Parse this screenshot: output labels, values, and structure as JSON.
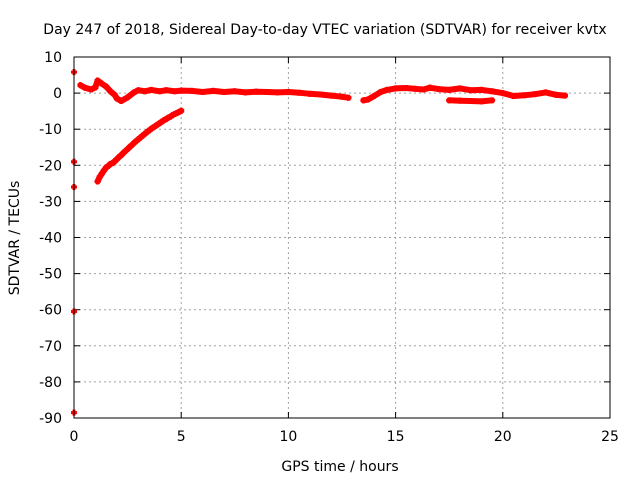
{
  "chart_data": {
    "type": "scatter",
    "title": "Day 247 of 2018, Sidereal Day-to-day VTEC variation (SDTVAR) for receiver kvtx",
    "xlabel": "GPS time / hours",
    "ylabel": "SDTVAR / TECUs",
    "xlim": [
      0,
      25
    ],
    "ylim": [
      -90,
      10
    ],
    "xticks": [
      0,
      5,
      10,
      15,
      20,
      25
    ],
    "yticks": [
      10,
      0,
      -10,
      -20,
      -30,
      -40,
      -50,
      -60,
      -70,
      -80,
      -90
    ],
    "grid": true,
    "series": [
      {
        "name": "SDTVAR",
        "color": "#ff0000",
        "marker": "plus",
        "points": [
          [
            0.0,
            5.8
          ],
          [
            0.0,
            -19.0
          ],
          [
            0.0,
            -26.0
          ],
          [
            0.0,
            -60.5
          ],
          [
            0.0,
            -88.5
          ],
          [
            0.3,
            2.2
          ],
          [
            0.5,
            1.5
          ],
          [
            0.8,
            1.0
          ],
          [
            1.0,
            1.6
          ],
          [
            1.1,
            3.5
          ],
          [
            1.3,
            2.6
          ],
          [
            1.5,
            1.8
          ],
          [
            1.7,
            0.5
          ],
          [
            1.9,
            -0.5
          ],
          [
            2.0,
            -1.5
          ],
          [
            2.2,
            -2.2
          ],
          [
            2.5,
            -1.2
          ],
          [
            2.8,
            0.2
          ],
          [
            3.0,
            0.8
          ],
          [
            3.3,
            0.5
          ],
          [
            3.6,
            0.9
          ],
          [
            4.0,
            0.5
          ],
          [
            4.3,
            0.8
          ],
          [
            4.7,
            0.5
          ],
          [
            5.0,
            0.7
          ],
          [
            5.5,
            0.6
          ],
          [
            6.0,
            0.3
          ],
          [
            6.5,
            0.6
          ],
          [
            7.0,
            0.3
          ],
          [
            7.5,
            0.5
          ],
          [
            8.0,
            0.2
          ],
          [
            8.5,
            0.4
          ],
          [
            9.0,
            0.3
          ],
          [
            9.5,
            0.2
          ],
          [
            10.0,
            0.3
          ],
          [
            10.5,
            0.1
          ],
          [
            11.0,
            -0.2
          ],
          [
            11.5,
            -0.4
          ],
          [
            12.0,
            -0.7
          ],
          [
            12.5,
            -1.0
          ],
          [
            12.8,
            -1.3
          ],
          [
            13.5,
            -2.0
          ],
          [
            13.7,
            -1.8
          ],
          [
            14.0,
            -0.8
          ],
          [
            14.3,
            0.3
          ],
          [
            14.6,
            0.9
          ],
          [
            15.0,
            1.3
          ],
          [
            15.5,
            1.4
          ],
          [
            15.9,
            1.2
          ],
          [
            16.3,
            1.0
          ],
          [
            16.6,
            1.5
          ],
          [
            17.0,
            1.1
          ],
          [
            17.5,
            0.9
          ],
          [
            18.0,
            1.3
          ],
          [
            18.5,
            0.8
          ],
          [
            19.0,
            0.9
          ],
          [
            19.5,
            0.5
          ],
          [
            20.0,
            0.0
          ],
          [
            20.5,
            -0.8
          ],
          [
            21.0,
            -0.6
          ],
          [
            21.5,
            -0.3
          ],
          [
            22.0,
            0.2
          ],
          [
            22.5,
            -0.5
          ],
          [
            22.9,
            -0.7
          ],
          [
            17.5,
            -2.0
          ],
          [
            18.0,
            -2.1
          ],
          [
            18.5,
            -2.2
          ],
          [
            19.0,
            -2.3
          ],
          [
            19.5,
            -2.0
          ],
          [
            1.1,
            -24.5
          ],
          [
            1.2,
            -23.2
          ],
          [
            1.3,
            -22.3
          ],
          [
            1.4,
            -21.4
          ],
          [
            1.5,
            -20.6
          ],
          [
            1.6,
            -20.2
          ],
          [
            1.7,
            -19.6
          ],
          [
            1.8,
            -19.4
          ],
          [
            1.9,
            -18.9
          ],
          [
            2.0,
            -18.3
          ],
          [
            2.1,
            -17.7
          ],
          [
            2.2,
            -17.2
          ],
          [
            2.3,
            -16.6
          ],
          [
            2.4,
            -16.0
          ],
          [
            2.5,
            -15.5
          ],
          [
            2.6,
            -14.9
          ],
          [
            2.7,
            -14.4
          ],
          [
            2.8,
            -13.8
          ],
          [
            2.9,
            -13.3
          ],
          [
            3.0,
            -12.8
          ],
          [
            3.1,
            -12.3
          ],
          [
            3.2,
            -11.8
          ],
          [
            3.3,
            -11.3
          ],
          [
            3.4,
            -10.8
          ],
          [
            3.5,
            -10.4
          ],
          [
            3.6,
            -9.9
          ],
          [
            3.7,
            -9.5
          ],
          [
            3.8,
            -9.1
          ],
          [
            3.9,
            -8.7
          ],
          [
            4.0,
            -8.3
          ],
          [
            4.1,
            -7.9
          ],
          [
            4.2,
            -7.5
          ],
          [
            4.3,
            -7.2
          ],
          [
            4.4,
            -6.8
          ],
          [
            4.5,
            -6.5
          ],
          [
            4.6,
            -6.1
          ],
          [
            4.7,
            -5.8
          ],
          [
            4.8,
            -5.5
          ],
          [
            4.9,
            -5.2
          ],
          [
            5.0,
            -4.9
          ]
        ]
      }
    ]
  }
}
